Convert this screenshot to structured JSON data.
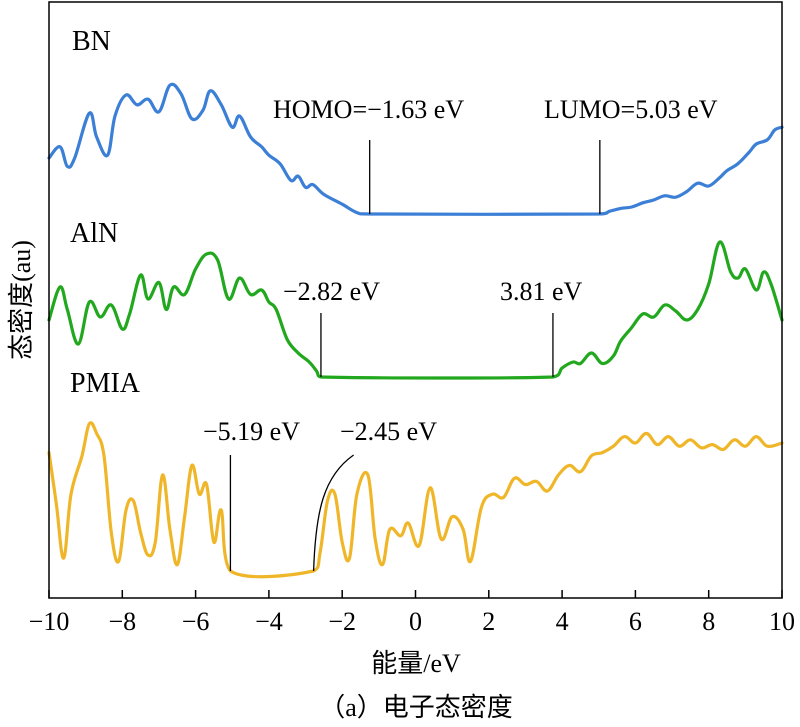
{
  "chart_data": {
    "type": "line",
    "title": "",
    "caption": "（a）电子态密度",
    "xlabel": "能量/eV",
    "ylabel": "态密度(au)",
    "xlim": [
      -10,
      10
    ],
    "x_ticks": [
      "−10",
      "−8",
      "−6",
      "−4",
      "−2",
      "0",
      "2",
      "4",
      "6",
      "8",
      "10"
    ],
    "y_ticks": "none",
    "grid": false,
    "legend": "none",
    "series": [
      {
        "name": "BN",
        "color": "#3c7fd6",
        "annotations": [
          {
            "label": "HOMO=−1.63 eV",
            "x": -1.25
          },
          {
            "label": "LUMO=5.03 eV",
            "x": 5.03
          }
        ],
        "points": [
          [
            -10,
            0.4
          ],
          [
            -9.7,
            0.48
          ],
          [
            -9.5,
            0.34
          ],
          [
            -9.3,
            0.4
          ],
          [
            -8.9,
            0.72
          ],
          [
            -8.7,
            0.55
          ],
          [
            -8.4,
            0.42
          ],
          [
            -8.2,
            0.7
          ],
          [
            -7.9,
            0.85
          ],
          [
            -7.6,
            0.78
          ],
          [
            -7.3,
            0.82
          ],
          [
            -7.0,
            0.73
          ],
          [
            -6.7,
            0.92
          ],
          [
            -6.4,
            0.86
          ],
          [
            -6.1,
            0.68
          ],
          [
            -5.8,
            0.74
          ],
          [
            -5.6,
            0.88
          ],
          [
            -5.3,
            0.78
          ],
          [
            -5.0,
            0.62
          ],
          [
            -4.8,
            0.7
          ],
          [
            -4.5,
            0.55
          ],
          [
            -4.2,
            0.48
          ],
          [
            -4.0,
            0.42
          ],
          [
            -3.7,
            0.36
          ],
          [
            -3.4,
            0.24
          ],
          [
            -3.2,
            0.27
          ],
          [
            -3.0,
            0.19
          ],
          [
            -2.8,
            0.21
          ],
          [
            -2.5,
            0.14
          ],
          [
            -2.0,
            0.07
          ],
          [
            -1.6,
            0.01
          ],
          [
            -1.25,
            0.0
          ],
          [
            5.03,
            0.0
          ],
          [
            5.3,
            0.02
          ],
          [
            5.6,
            0.04
          ],
          [
            5.9,
            0.05
          ],
          [
            6.2,
            0.08
          ],
          [
            6.5,
            0.1
          ],
          [
            6.8,
            0.13
          ],
          [
            7.1,
            0.12
          ],
          [
            7.4,
            0.16
          ],
          [
            7.7,
            0.22
          ],
          [
            8.0,
            0.2
          ],
          [
            8.3,
            0.26
          ],
          [
            8.5,
            0.31
          ],
          [
            8.8,
            0.36
          ],
          [
            9.1,
            0.44
          ],
          [
            9.3,
            0.5
          ],
          [
            9.6,
            0.53
          ],
          [
            9.8,
            0.6
          ],
          [
            10,
            0.62
          ]
        ]
      },
      {
        "name": "AlN",
        "color": "#22a81e",
        "annotations": [
          {
            "label": "−2.82 eV",
            "x": -2.58
          },
          {
            "label": "3.81 eV",
            "x": 3.75
          }
        ],
        "points": [
          [
            -10,
            0.38
          ],
          [
            -9.7,
            0.6
          ],
          [
            -9.5,
            0.45
          ],
          [
            -9.2,
            0.22
          ],
          [
            -8.9,
            0.5
          ],
          [
            -8.6,
            0.4
          ],
          [
            -8.3,
            0.48
          ],
          [
            -8.0,
            0.32
          ],
          [
            -7.8,
            0.42
          ],
          [
            -7.5,
            0.68
          ],
          [
            -7.3,
            0.52
          ],
          [
            -7.0,
            0.63
          ],
          [
            -6.8,
            0.45
          ],
          [
            -6.6,
            0.6
          ],
          [
            -6.3,
            0.55
          ],
          [
            -6.0,
            0.72
          ],
          [
            -5.7,
            0.82
          ],
          [
            -5.4,
            0.78
          ],
          [
            -5.1,
            0.52
          ],
          [
            -4.8,
            0.66
          ],
          [
            -4.5,
            0.55
          ],
          [
            -4.2,
            0.58
          ],
          [
            -4.0,
            0.5
          ],
          [
            -3.8,
            0.45
          ],
          [
            -3.5,
            0.25
          ],
          [
            -3.2,
            0.16
          ],
          [
            -2.9,
            0.1
          ],
          [
            -2.7,
            0.04
          ],
          [
            -2.58,
            0.0
          ],
          [
            3.75,
            0.0
          ],
          [
            4.0,
            0.06
          ],
          [
            4.3,
            0.1
          ],
          [
            4.5,
            0.09
          ],
          [
            4.8,
            0.16
          ],
          [
            5.1,
            0.09
          ],
          [
            5.4,
            0.14
          ],
          [
            5.6,
            0.24
          ],
          [
            5.9,
            0.33
          ],
          [
            6.2,
            0.42
          ],
          [
            6.5,
            0.4
          ],
          [
            6.8,
            0.48
          ],
          [
            7.1,
            0.44
          ],
          [
            7.4,
            0.38
          ],
          [
            7.7,
            0.45
          ],
          [
            8.0,
            0.62
          ],
          [
            8.3,
            0.9
          ],
          [
            8.6,
            0.7
          ],
          [
            8.8,
            0.66
          ],
          [
            9.0,
            0.72
          ],
          [
            9.3,
            0.58
          ],
          [
            9.5,
            0.7
          ],
          [
            9.7,
            0.62
          ],
          [
            10,
            0.38
          ]
        ]
      },
      {
        "name": "PMIA",
        "color": "#f0b629",
        "annotations": [
          {
            "label": "−5.19 eV",
            "x": -5.05
          },
          {
            "label": "−2.45 eV",
            "x": -2.78
          }
        ],
        "points": [
          [
            -10,
            0.74
          ],
          [
            -9.8,
            0.42
          ],
          [
            -9.6,
            0.08
          ],
          [
            -9.4,
            0.48
          ],
          [
            -9.1,
            0.72
          ],
          [
            -8.9,
            0.92
          ],
          [
            -8.7,
            0.86
          ],
          [
            -8.5,
            0.72
          ],
          [
            -8.3,
            0.24
          ],
          [
            -8.1,
            0.06
          ],
          [
            -7.9,
            0.38
          ],
          [
            -7.7,
            0.44
          ],
          [
            -7.5,
            0.24
          ],
          [
            -7.3,
            0.1
          ],
          [
            -7.1,
            0.18
          ],
          [
            -6.9,
            0.6
          ],
          [
            -6.7,
            0.26
          ],
          [
            -6.5,
            0.04
          ],
          [
            -6.3,
            0.34
          ],
          [
            -6.1,
            0.66
          ],
          [
            -5.9,
            0.48
          ],
          [
            -5.7,
            0.54
          ],
          [
            -5.5,
            0.18
          ],
          [
            -5.3,
            0.38
          ],
          [
            -5.05,
            0.0
          ],
          [
            -2.78,
            0.0
          ],
          [
            -2.6,
            0.12
          ],
          [
            -2.4,
            0.44
          ],
          [
            -2.2,
            0.48
          ],
          [
            -2.0,
            0.18
          ],
          [
            -1.8,
            0.08
          ],
          [
            -1.6,
            0.48
          ],
          [
            -1.3,
            0.6
          ],
          [
            -1.1,
            0.2
          ],
          [
            -0.9,
            0.04
          ],
          [
            -0.7,
            0.26
          ],
          [
            -0.4,
            0.22
          ],
          [
            -0.2,
            0.3
          ],
          [
            0.1,
            0.16
          ],
          [
            0.4,
            0.52
          ],
          [
            0.7,
            0.2
          ],
          [
            1.0,
            0.34
          ],
          [
            1.3,
            0.26
          ],
          [
            1.5,
            0.06
          ],
          [
            1.8,
            0.4
          ],
          [
            2.1,
            0.48
          ],
          [
            2.4,
            0.46
          ],
          [
            2.7,
            0.58
          ],
          [
            3.0,
            0.54
          ],
          [
            3.3,
            0.56
          ],
          [
            3.6,
            0.5
          ],
          [
            3.9,
            0.6
          ],
          [
            4.2,
            0.66
          ],
          [
            4.5,
            0.62
          ],
          [
            4.8,
            0.72
          ],
          [
            5.1,
            0.74
          ],
          [
            5.4,
            0.78
          ],
          [
            5.7,
            0.84
          ],
          [
            6.0,
            0.8
          ],
          [
            6.3,
            0.86
          ],
          [
            6.6,
            0.79
          ],
          [
            6.9,
            0.84
          ],
          [
            7.2,
            0.78
          ],
          [
            7.5,
            0.82
          ],
          [
            7.8,
            0.77
          ],
          [
            8.1,
            0.79
          ],
          [
            8.4,
            0.76
          ],
          [
            8.7,
            0.82
          ],
          [
            9.0,
            0.78
          ],
          [
            9.3,
            0.84
          ],
          [
            9.6,
            0.78
          ],
          [
            10,
            0.8
          ]
        ]
      }
    ]
  }
}
